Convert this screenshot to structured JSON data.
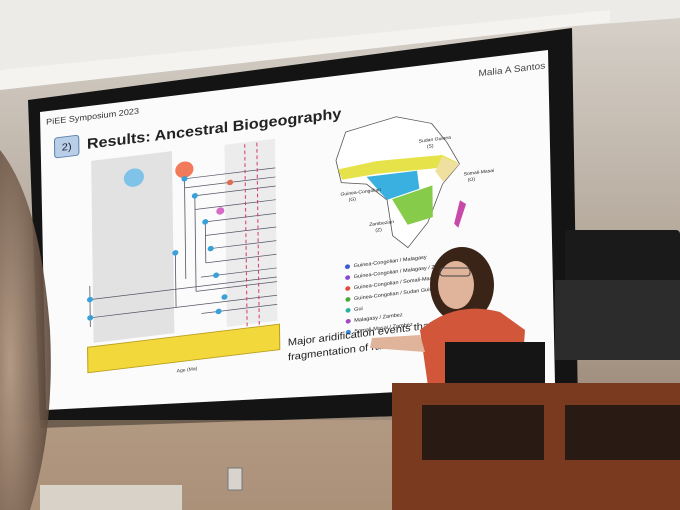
{
  "slide": {
    "event": "PiEE Symposium 2023",
    "author": "Malia A Santos",
    "section_number": "2)",
    "title": "Results: Ancestral Biogeography",
    "map_labels": [
      "Sudan Guinea",
      "(S)",
      "Somali-Masai",
      "(O)",
      "Guinea-Congolian",
      "(G)",
      "Zambezian",
      "(Z)"
    ],
    "legend": [
      "Guinea-Congolian / Malagasy",
      "Guinea-Congolian / Malagasy / Zambez",
      "Guinea-Congolian / Somali-Masai",
      "Guinea-Congolian / Sudan Guinea",
      "Gui",
      "Malagasy / Zambez",
      "Somali-Masai / Zambez"
    ],
    "caption": [
      "Major aridification events that",
      "fragmentation of rainfor"
    ],
    "axis_label": "Age (Ma)"
  }
}
